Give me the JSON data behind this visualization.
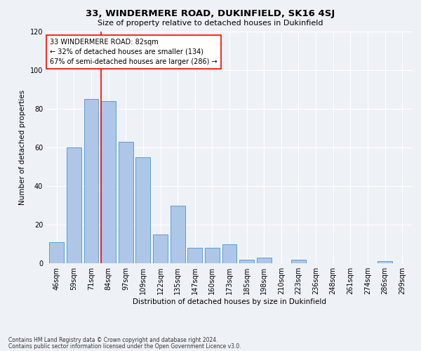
{
  "title": "33, WINDERMERE ROAD, DUKINFIELD, SK16 4SJ",
  "subtitle": "Size of property relative to detached houses in Dukinfield",
  "xlabel": "Distribution of detached houses by size in Dukinfield",
  "ylabel": "Number of detached properties",
  "categories": [
    "46sqm",
    "59sqm",
    "71sqm",
    "84sqm",
    "97sqm",
    "109sqm",
    "122sqm",
    "135sqm",
    "147sqm",
    "160sqm",
    "173sqm",
    "185sqm",
    "198sqm",
    "210sqm",
    "223sqm",
    "236sqm",
    "248sqm",
    "261sqm",
    "274sqm",
    "286sqm",
    "299sqm"
  ],
  "values": [
    11,
    60,
    85,
    84,
    63,
    55,
    15,
    30,
    8,
    8,
    10,
    2,
    3,
    0,
    2,
    0,
    0,
    0,
    0,
    1,
    0
  ],
  "bar_color": "#aec6e8",
  "bar_edge_color": "#5a9fd4",
  "vline_color": "red",
  "annotation_text": "33 WINDERMERE ROAD: 82sqm\n← 32% of detached houses are smaller (134)\n67% of semi-detached houses are larger (286) →",
  "annotation_box_color": "white",
  "annotation_box_edge": "red",
  "ylim": [
    0,
    120
  ],
  "yticks": [
    0,
    20,
    40,
    60,
    80,
    100,
    120
  ],
  "footer_line1": "Contains HM Land Registry data © Crown copyright and database right 2024.",
  "footer_line2": "Contains public sector information licensed under the Open Government Licence v3.0.",
  "bg_color": "#eef2f7",
  "plot_bg_color": "#eef2f7",
  "title_fontsize": 9.5,
  "subtitle_fontsize": 8,
  "ylabel_fontsize": 7.5,
  "xlabel_fontsize": 7.5,
  "tick_fontsize": 7,
  "annotation_fontsize": 7,
  "footer_fontsize": 5.5
}
